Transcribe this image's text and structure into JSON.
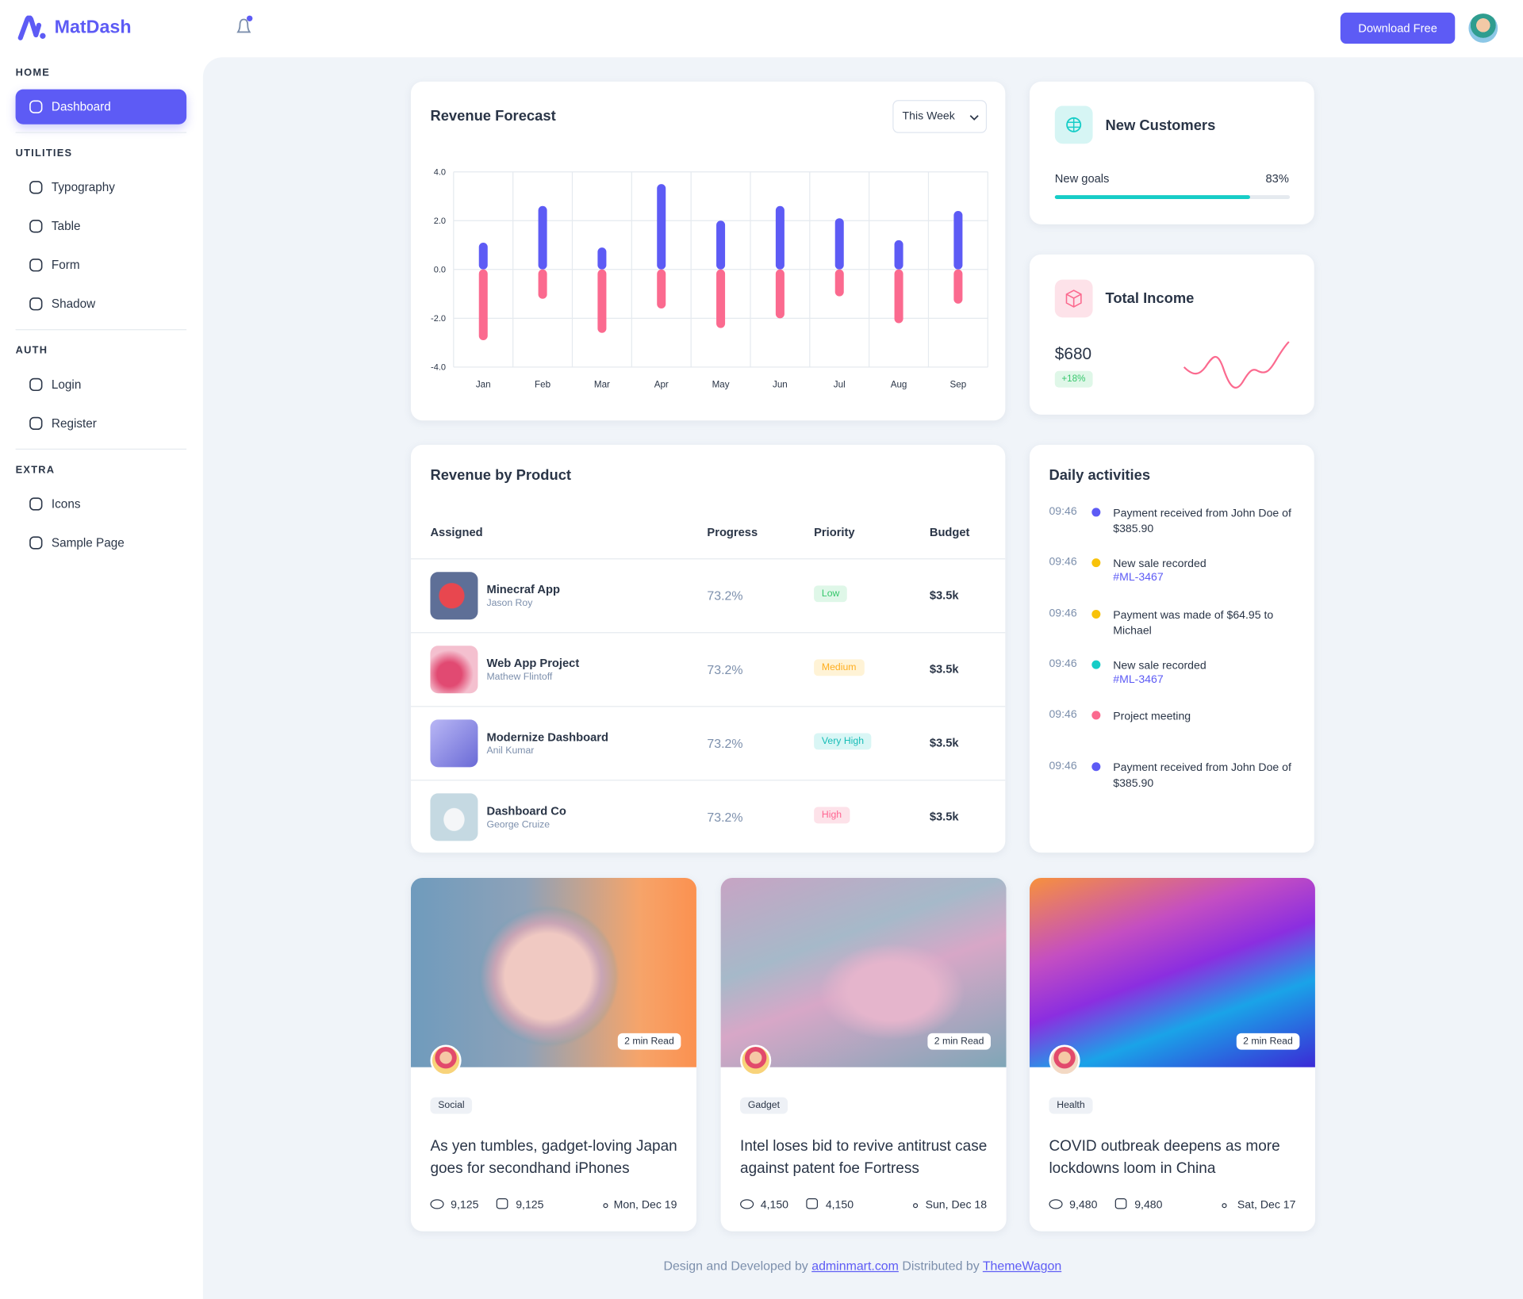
{
  "brand": "MatDash",
  "header": {
    "button": "Download Free"
  },
  "sidebar": {
    "sections": [
      {
        "title": "HOME",
        "items": [
          "Dashboard"
        ]
      },
      {
        "title": "UTILITIES",
        "items": [
          "Typography",
          "Table",
          "Form",
          "Shadow"
        ]
      },
      {
        "title": "AUTH",
        "items": [
          "Login",
          "Register"
        ]
      },
      {
        "title": "EXTRA",
        "items": [
          "Icons",
          "Sample Page"
        ]
      }
    ]
  },
  "revenue_forecast": {
    "type": "bar",
    "title": "Revenue Forecast",
    "period": "This Week",
    "categories": [
      "Jan",
      "Feb",
      "Mar",
      "Apr",
      "May",
      "Jun",
      "Jul",
      "Aug",
      "Sep"
    ],
    "series": [
      {
        "color": "#5d5bf5",
        "values": [
          1.1,
          2.6,
          0.9,
          3.5,
          2.0,
          2.6,
          2.1,
          1.2,
          2.4
        ]
      },
      {
        "color": "#fb6a8f",
        "values": [
          -2.9,
          -1.2,
          -2.6,
          -1.6,
          -2.4,
          -2.0,
          -1.1,
          -2.2,
          -1.4
        ]
      }
    ],
    "ylim": [
      -4,
      4
    ],
    "yticks": [
      {
        "value": 4,
        "label": "4.0"
      },
      {
        "value": 2,
        "label": "2.0"
      },
      {
        "value": 0,
        "label": "0.0"
      },
      {
        "value": -2,
        "label": "-2.0"
      },
      {
        "value": -4,
        "label": "-4.0"
      }
    ],
    "grid": true
  },
  "new_customers": {
    "title": "New Customers",
    "label": "New goals",
    "progress": {
      "value": 83,
      "label": "83%"
    },
    "color": "#16cdc7"
  },
  "total_income": {
    "title": "Total Income",
    "amount": "$680",
    "change": "+18%"
  },
  "revenue_by_product": {
    "title": "Revenue by Product",
    "columns": [
      "Assigned",
      "Progress",
      "Priority",
      "Budget"
    ],
    "rows": [
      {
        "name": "Minecraf App",
        "person": "Jason Roy",
        "progress": "73.2%",
        "priority": "Low",
        "priority_color": "#36c76c",
        "priority_bg": "#dff7e8",
        "budget": "$3.5k"
      },
      {
        "name": "Web App Project",
        "person": "Mathew Flintoff",
        "progress": "73.2%",
        "priority": "Medium",
        "priority_color": "#ffae1f",
        "priority_bg": "#fff3d6",
        "budget": "$3.5k"
      },
      {
        "name": "Modernize Dashboard",
        "person": "Anil Kumar",
        "progress": "73.2%",
        "priority": "Very High",
        "priority_color": "#16bdb7",
        "priority_bg": "#d9f6f5",
        "budget": "$3.5k"
      },
      {
        "name": "Dashboard Co",
        "person": "George Cruize",
        "progress": "73.2%",
        "priority": "High",
        "priority_color": "#ff6692",
        "priority_bg": "#fde2e9",
        "budget": "$3.5k"
      }
    ]
  },
  "daily_activities": {
    "title": "Daily activities",
    "items": [
      {
        "time": "09:46",
        "text": "Payment received from John Doe of $385.90",
        "color": "#5d5bf5"
      },
      {
        "time": "09:46",
        "text": "New sale recorded",
        "link": "#ML-3467",
        "color": "#f8c20a"
      },
      {
        "time": "09:46",
        "text": "Payment was made of $64.95 to Michael",
        "color": "#f8c20a"
      },
      {
        "time": "09:46",
        "text": "New sale recorded",
        "link": "#ML-3467",
        "color": "#16cdc7"
      },
      {
        "time": "09:46",
        "text": "Project meeting",
        "color": "#fb6a8f"
      },
      {
        "time": "09:46",
        "text": "Payment received from John Doe of $385.90",
        "color": "#5d5bf5"
      }
    ]
  },
  "posts": [
    {
      "read": "2 min Read",
      "tag": "Social",
      "title": "As yen tumbles, gadget-loving Japan goes for secondhand iPhones",
      "views": "9,125",
      "comments": "9,125",
      "date": "Mon, Dec 19"
    },
    {
      "read": "2 min Read",
      "tag": "Gadget",
      "title": "Intel loses bid to revive antitrust case against patent foe Fortress",
      "views": "4,150",
      "comments": "4,150",
      "date": "Sun, Dec 18"
    },
    {
      "read": "2 min Read",
      "tag": "Health",
      "title": "COVID outbreak deepens as more lockdowns loom in China",
      "views": "9,480",
      "comments": "9,480",
      "date": "Sat, Dec 17"
    }
  ],
  "footer": {
    "prefix": "Design and Developed by",
    "link1": "adminmart.com",
    "middle": "Distributed by",
    "link2": "ThemeWagon"
  }
}
